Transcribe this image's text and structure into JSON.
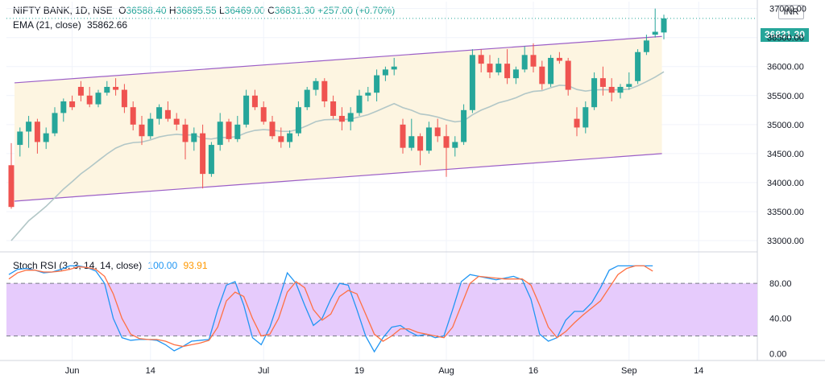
{
  "header": {
    "symbol": "NIFTY BANK, 1D, NSE",
    "o_label": "O",
    "o_value": "36588.40",
    "h_label": "H",
    "h_value": "36895.55",
    "l_label": "L",
    "l_value": "36469.00",
    "c_label": "C",
    "c_value": "36831.30",
    "change": "+257.00 (+0.70%)"
  },
  "ema": {
    "label": "EMA (21, close)",
    "value": "35862.66"
  },
  "stoch": {
    "label": "Stoch RSI (3, 3, 14, 14, close)",
    "k_value": "100.00",
    "d_value": "93.91"
  },
  "currency": "INR",
  "last_price_tag": "36831.30",
  "colors": {
    "up": "#26a69a",
    "down": "#ef5350",
    "ema": "#b2c7c7",
    "channel": "#9c5fc7",
    "channel_fill": "#fdf5e1",
    "k": "#2196f3",
    "d": "#ff7043",
    "rsi_band": "#e6cbfc"
  },
  "chart_data": [
    {
      "type": "candlestick",
      "name": "NIFTY BANK",
      "y_ticks": [
        33000,
        33500,
        34000,
        34500,
        35000,
        35500,
        36000,
        36500,
        37000
      ],
      "y_tick_labels": [
        "33000.00",
        "33500.00",
        "34000.00",
        "34500.00",
        "35000.00",
        "35500.00",
        "36000.00",
        "36500.00",
        "37000.00"
      ],
      "ylim": [
        32820,
        37120
      ],
      "x_tick_labels": [
        {
          "label": "Jun",
          "idx": 7
        },
        {
          "label": "14",
          "idx": 16
        },
        {
          "label": "Jul",
          "idx": 29
        },
        {
          "label": "19",
          "idx": 40
        },
        {
          "label": "Aug",
          "idx": 50
        },
        {
          "label": "16",
          "idx": 60
        },
        {
          "label": "Sep",
          "idx": 71
        },
        {
          "label": "14",
          "idx": 79
        }
      ],
      "channel": {
        "upper": [
          [
            0,
            35720
          ],
          [
            72,
            36520
          ]
        ],
        "lower": [
          [
            0,
            33680
          ],
          [
            72,
            34500
          ]
        ]
      },
      "ohlc": [
        [
          34300,
          34680,
          33550,
          33580
        ],
        [
          34650,
          34950,
          34450,
          34880
        ],
        [
          34880,
          35150,
          34600,
          35050
        ],
        [
          35050,
          35100,
          34500,
          34700
        ],
        [
          34700,
          34950,
          34580,
          34850
        ],
        [
          34850,
          35300,
          34800,
          35200
        ],
        [
          35200,
          35450,
          35050,
          35400
        ],
        [
          35400,
          35500,
          35250,
          35300
        ],
        [
          35650,
          35750,
          35400,
          35500
        ],
        [
          35500,
          35650,
          35300,
          35350
        ],
        [
          35350,
          35600,
          35300,
          35550
        ],
        [
          35550,
          35750,
          35500,
          35650
        ],
        [
          35650,
          35800,
          35500,
          35600
        ],
        [
          35600,
          35700,
          35200,
          35300
        ],
        [
          35300,
          35400,
          34900,
          35000
        ],
        [
          35000,
          35150,
          34650,
          34800
        ],
        [
          34800,
          35200,
          34750,
          35100
        ],
        [
          35100,
          35350,
          35000,
          35300
        ],
        [
          35250,
          35400,
          35050,
          35100
        ],
        [
          35100,
          35200,
          34900,
          35000
        ],
        [
          35000,
          35100,
          34400,
          34700
        ],
        [
          34700,
          34950,
          34550,
          34850
        ],
        [
          34850,
          35000,
          33900,
          34150
        ],
        [
          34150,
          34700,
          34100,
          34650
        ],
        [
          34650,
          35200,
          34550,
          35050
        ],
        [
          35050,
          35100,
          34700,
          34750
        ],
        [
          34750,
          35150,
          34700,
          35000
        ],
        [
          35000,
          35600,
          34950,
          35500
        ],
        [
          35500,
          35600,
          35250,
          35300
        ],
        [
          35300,
          35400,
          35000,
          35050
        ],
        [
          35050,
          35150,
          34750,
          34800
        ],
        [
          34800,
          34950,
          34600,
          34700
        ],
        [
          34700,
          34900,
          34600,
          34850
        ],
        [
          34850,
          35400,
          34800,
          35300
        ],
        [
          35300,
          35650,
          35250,
          35600
        ],
        [
          35600,
          35800,
          35500,
          35750
        ],
        [
          35750,
          35800,
          35300,
          35400
        ],
        [
          35400,
          35500,
          35100,
          35150
        ],
        [
          35150,
          35300,
          34900,
          35050
        ],
        [
          35050,
          35300,
          34900,
          35200
        ],
        [
          35200,
          35600,
          35150,
          35500
        ],
        [
          35500,
          35650,
          35400,
          35550
        ],
        [
          35550,
          35950,
          35400,
          35850
        ],
        [
          35850,
          36000,
          35750,
          35950
        ],
        [
          35950,
          36150,
          35850,
          36000
        ],
        [
          35000,
          35100,
          34500,
          34600
        ],
        [
          34600,
          35100,
          34550,
          34800
        ],
        [
          34800,
          34850,
          34300,
          34550
        ],
        [
          34550,
          35050,
          34500,
          34950
        ],
        [
          34950,
          35100,
          34700,
          34800
        ],
        [
          34800,
          35000,
          34100,
          34600
        ]
      ]
    },
    {
      "type": "line",
      "name": "Stoch RSI",
      "y_ticks": [
        0,
        40,
        80
      ],
      "y_tick_labels": [
        "0.00",
        "40.00",
        "80.00"
      ],
      "ylim": [
        -8,
        115
      ],
      "band": [
        20,
        80
      ],
      "series": [
        {
          "name": "K",
          "values": [
            90,
            96,
            97,
            95,
            92,
            93,
            96,
            100,
            100,
            98,
            94,
            80,
            40,
            18,
            15,
            16,
            16,
            15,
            10,
            3,
            8,
            14,
            15,
            16,
            50,
            78,
            82,
            55,
            18,
            10,
            30,
            60,
            92,
            80,
            55,
            32,
            40,
            62,
            80,
            78,
            50,
            20,
            2,
            18,
            30,
            32,
            25,
            20,
            22,
            18
          ]
        },
        {
          "name": "D",
          "values": [
            85,
            92,
            95,
            95,
            93,
            93,
            94,
            96,
            99,
            98,
            96,
            88,
            68,
            40,
            22,
            17,
            16,
            16,
            14,
            10,
            8,
            10,
            12,
            15,
            30,
            60,
            70,
            65,
            40,
            20,
            22,
            40,
            70,
            82,
            75,
            50,
            38,
            45,
            65,
            72,
            68,
            45,
            22,
            14,
            20,
            28,
            28,
            24,
            22,
            20
          ]
        }
      ]
    }
  ]
}
